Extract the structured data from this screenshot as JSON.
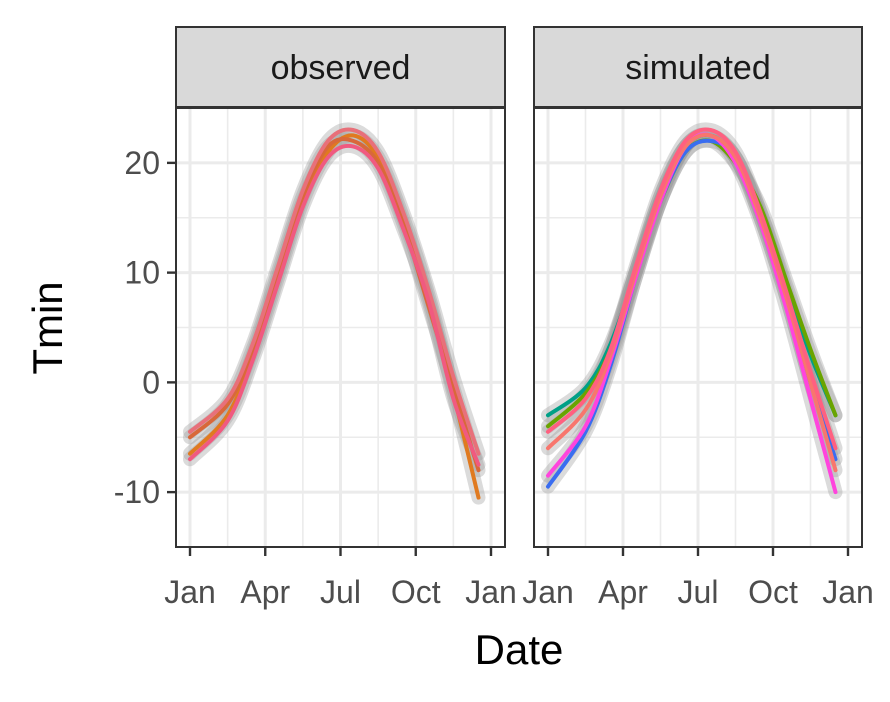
{
  "chart_data": {
    "type": "line",
    "ylabel": "Tmin",
    "xlabel": "Date",
    "x_ticks": [
      "Jan",
      "Apr",
      "Jul",
      "Oct",
      "Jan"
    ],
    "y_ticks": [
      -10,
      0,
      10,
      20
    ],
    "ylim": [
      -15,
      25
    ],
    "grid": true,
    "panels": [
      {
        "strip": "observed",
        "series": [
          {
            "color": "#e07a20",
            "values": [
              [
                0,
                -6.5
              ],
              [
                1,
                -3.0
              ],
              [
                2,
                2.5
              ],
              [
                3,
                9.5
              ],
              [
                4,
                16.5
              ],
              [
                5,
                21.0
              ],
              [
                6,
                22.5
              ],
              [
                7,
                20.5
              ],
              [
                8,
                15.0
              ],
              [
                9,
                8.0
              ],
              [
                10,
                -1.0
              ],
              [
                11,
                -10.5
              ]
            ]
          },
          {
            "color": "#d9683a",
            "values": [
              [
                0,
                -5.0
              ],
              [
                1,
                -2.0
              ],
              [
                2,
                3.0
              ],
              [
                3,
                10.0
              ],
              [
                4,
                17.0
              ],
              [
                5,
                21.5
              ],
              [
                6,
                22.0
              ],
              [
                7,
                20.0
              ],
              [
                8,
                14.5
              ],
              [
                9,
                7.0
              ],
              [
                10,
                -0.5
              ],
              [
                11,
                -8.0
              ]
            ]
          },
          {
            "color": "#e8707a",
            "values": [
              [
                0,
                -4.5
              ],
              [
                1,
                -1.5
              ],
              [
                2,
                3.5
              ],
              [
                3,
                10.5
              ],
              [
                4,
                17.5
              ],
              [
                5,
                22.0
              ],
              [
                6,
                23.0
              ],
              [
                7,
                21.0
              ],
              [
                8,
                15.5
              ],
              [
                9,
                8.5
              ],
              [
                10,
                0.5
              ],
              [
                11,
                -6.5
              ]
            ]
          },
          {
            "color": "#f05a80",
            "values": [
              [
                0,
                -7.0
              ],
              [
                1,
                -3.5
              ],
              [
                2,
                2.0
              ],
              [
                3,
                9.0
              ],
              [
                4,
                16.0
              ],
              [
                5,
                20.5
              ],
              [
                6,
                21.5
              ],
              [
                7,
                19.5
              ],
              [
                8,
                14.0
              ],
              [
                9,
                7.5
              ],
              [
                10,
                -1.5
              ],
              [
                11,
                -7.5
              ]
            ]
          }
        ]
      },
      {
        "strip": "simulated",
        "series": [
          {
            "color": "#00a087",
            "values": [
              [
                0,
                -3.0
              ],
              [
                1,
                -0.5
              ],
              [
                2,
                3.5
              ],
              [
                3,
                10.0
              ],
              [
                4,
                17.0
              ],
              [
                5,
                21.5
              ],
              [
                6,
                22.5
              ],
              [
                7,
                20.5
              ],
              [
                8,
                15.5
              ],
              [
                9,
                9.0
              ],
              [
                10,
                2.5
              ],
              [
                11,
                -3.0
              ]
            ]
          },
          {
            "color": "#6aa400",
            "values": [
              [
                0,
                -4.0
              ],
              [
                1,
                -1.0
              ],
              [
                2,
                3.0
              ],
              [
                3,
                10.0
              ],
              [
                4,
                16.5
              ],
              [
                5,
                21.0
              ],
              [
                6,
                22.0
              ],
              [
                7,
                20.0
              ],
              [
                8,
                16.0
              ],
              [
                9,
                9.5
              ],
              [
                10,
                3.0
              ],
              [
                11,
                -3.0
              ]
            ]
          },
          {
            "color": "#3a6df0",
            "values": [
              [
                0,
                -9.5
              ],
              [
                1,
                -4.5
              ],
              [
                2,
                1.5
              ],
              [
                3,
                9.5
              ],
              [
                4,
                16.5
              ],
              [
                5,
                21.0
              ],
              [
                6,
                22.0
              ],
              [
                7,
                20.5
              ],
              [
                8,
                15.0
              ],
              [
                9,
                8.0
              ],
              [
                10,
                0.0
              ],
              [
                11,
                -7.0
              ]
            ]
          },
          {
            "color": "#ff44dd",
            "values": [
              [
                0,
                -8.5
              ],
              [
                1,
                -4.0
              ],
              [
                2,
                2.0
              ],
              [
                3,
                9.5
              ],
              [
                4,
                16.5
              ],
              [
                5,
                21.5
              ],
              [
                6,
                22.5
              ],
              [
                7,
                20.0
              ],
              [
                8,
                14.5
              ],
              [
                9,
                7.0
              ],
              [
                10,
                -1.5
              ],
              [
                11,
                -10.0
              ]
            ]
          },
          {
            "color": "#f8766d",
            "values": [
              [
                0,
                -6.0
              ],
              [
                1,
                -2.5
              ],
              [
                2,
                2.5
              ],
              [
                3,
                10.0
              ],
              [
                4,
                17.0
              ],
              [
                5,
                21.5
              ],
              [
                6,
                22.5
              ],
              [
                7,
                20.5
              ],
              [
                8,
                15.0
              ],
              [
                9,
                8.0
              ],
              [
                10,
                0.0
              ],
              [
                11,
                -8.0
              ]
            ]
          },
          {
            "color": "#ff6080",
            "values": [
              [
                0,
                -4.5
              ],
              [
                1,
                -1.5
              ],
              [
                2,
                3.0
              ],
              [
                3,
                10.5
              ],
              [
                4,
                17.5
              ],
              [
                5,
                22.0
              ],
              [
                6,
                23.0
              ],
              [
                7,
                21.0
              ],
              [
                8,
                15.5
              ],
              [
                9,
                8.5
              ],
              [
                10,
                1.0
              ],
              [
                11,
                -6.0
              ]
            ]
          }
        ]
      }
    ]
  }
}
